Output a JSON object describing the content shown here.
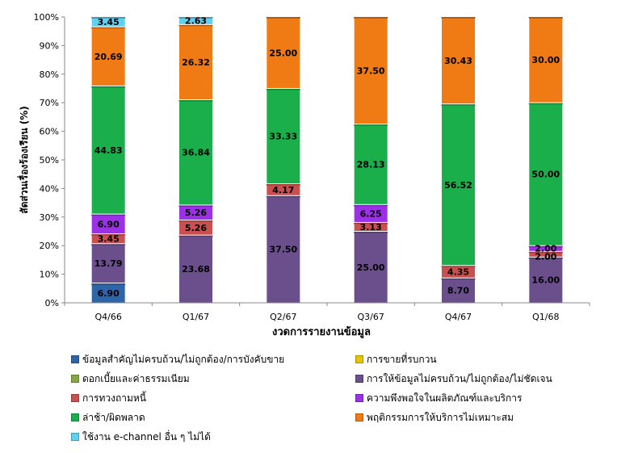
{
  "chart_data": {
    "type": "bar",
    "stacked": true,
    "percent": true,
    "categories": [
      "Q4/66",
      "Q1/67",
      "Q2/67",
      "Q3/67",
      "Q4/67",
      "Q1/68"
    ],
    "xlabel": "งวดการรายงานข้อมูล",
    "ylabel": "สัดส่วนเรื่องร้องเรียน (%)",
    "ylim": [
      0,
      100
    ],
    "yticks": [
      "0%",
      "10%",
      "20%",
      "30%",
      "40%",
      "50%",
      "60%",
      "70%",
      "80%",
      "90%",
      "100%"
    ],
    "grid": false,
    "legend_position": "bottom",
    "series": [
      {
        "name": "ข้อมูลสำคัญไม่ครบถ้วน/ไม่ถูกต้อง/การบังคับขาย",
        "color": "#2E64A8",
        "values": [
          6.9,
          0,
          0,
          0,
          0,
          0
        ],
        "labels": [
          "6.90",
          "",
          "",
          "",
          "",
          ""
        ]
      },
      {
        "name": "การขายที่รบกวน",
        "color": "#E8C400",
        "values": [
          0,
          0,
          0,
          0,
          0,
          0
        ],
        "labels": [
          "",
          "",
          "",
          "",
          "",
          ""
        ]
      },
      {
        "name": "ดอกเบี้ยและค่าธรรมเนียม",
        "color": "#86A844",
        "values": [
          0,
          0,
          0,
          0,
          0,
          0
        ],
        "labels": [
          "",
          "",
          "",
          "",
          "",
          ""
        ]
      },
      {
        "name": "การให้ข้อมูลไม่ครบถ้วน/ไม่ถูกต้อง/ไม่ชัดเจน",
        "color": "#6B4F8C",
        "values": [
          13.79,
          23.68,
          37.5,
          25.0,
          8.7,
          16.0
        ],
        "labels": [
          "13.79",
          "23.68",
          "37.50",
          "25.00",
          "8.70",
          "16.00"
        ]
      },
      {
        "name": "การทวงถามหนี้",
        "color": "#C9504E",
        "values": [
          3.45,
          5.26,
          4.17,
          3.13,
          4.35,
          2.0
        ],
        "labels": [
          "3.45",
          "5.26",
          "4.17",
          "3.13",
          "4.35",
          "2.00"
        ]
      },
      {
        "name": "ความพึงพอใจในผลิตภัณฑ์และบริการ",
        "color": "#9B30E6",
        "values": [
          6.9,
          5.26,
          0,
          6.25,
          0,
          2.0
        ],
        "labels": [
          "6.90",
          "5.26",
          "",
          "6.25",
          "",
          "2.00"
        ]
      },
      {
        "name": "ล่าช้า/ผิดพลาด",
        "color": "#1AAF4B",
        "values": [
          44.83,
          36.84,
          33.33,
          28.13,
          56.52,
          50.0
        ],
        "labels": [
          "44.83",
          "36.84",
          "33.33",
          "28.13",
          "56.52",
          "50.00"
        ]
      },
      {
        "name": "พฤติกรรมการให้บริการไม่เหมาะสม",
        "color": "#F07A13",
        "values": [
          20.69,
          26.32,
          25.0,
          37.5,
          30.43,
          30.0
        ],
        "labels": [
          "20.69",
          "26.32",
          "25.00",
          "37.50",
          "30.43",
          "30.00"
        ]
      },
      {
        "name": "ใช้งาน e-channel อื่น ๆ ไม่ได้",
        "color": "#5FD0F0",
        "values": [
          3.45,
          2.63,
          0,
          0,
          0,
          0
        ],
        "labels": [
          "3.45",
          "2.63",
          "",
          "",
          "",
          ""
        ]
      }
    ]
  },
  "legend_order": [
    0,
    1,
    2,
    3,
    4,
    5,
    6,
    7,
    8
  ]
}
